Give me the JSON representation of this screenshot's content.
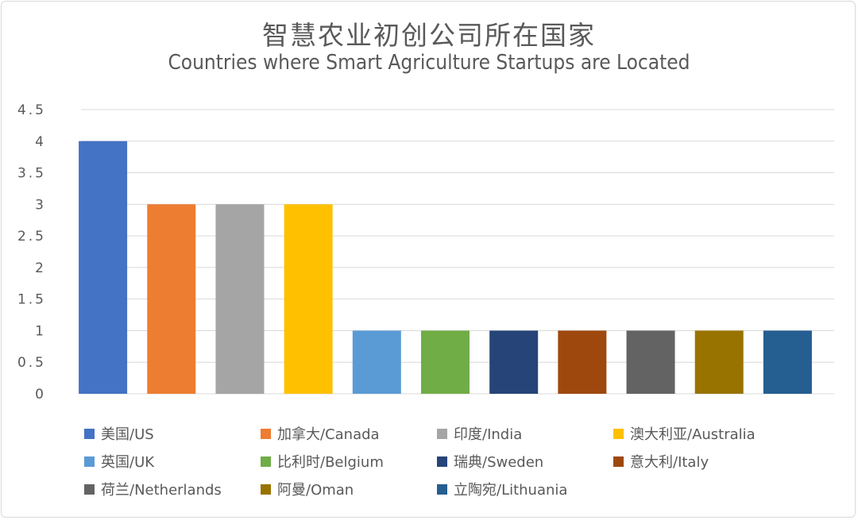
{
  "chart_data": {
    "type": "bar",
    "title": "智慧农业初创公司所在国家",
    "subtitle": "Countries where Smart Agriculture Startups are Located",
    "xlabel": "",
    "ylabel": "",
    "ylim": [
      0,
      4.5
    ],
    "yticks": [
      "0",
      "0.5",
      "1",
      "1.5",
      "2",
      "2.5",
      "3",
      "3.5",
      "4",
      "4.5"
    ],
    "grid": true,
    "legend_position": "bottom",
    "categories": [
      "美国/US",
      "加拿大/Canada",
      "印度/India",
      "澳大利亚/Australia",
      "英国/UK",
      "比利时/Belgium",
      "瑞典/Sweden",
      "意大利/Italy",
      "荷兰/Netherlands",
      "阿曼/Oman",
      "立陶宛/Lithuania"
    ],
    "values": [
      4,
      3,
      3,
      3,
      1,
      1,
      1,
      1,
      1,
      1,
      1
    ],
    "colors": [
      "#4472C4",
      "#ED7D31",
      "#A5A5A5",
      "#FFC000",
      "#5B9BD5",
      "#70AD47",
      "#264478",
      "#9E480E",
      "#636363",
      "#997300",
      "#255E91"
    ]
  }
}
